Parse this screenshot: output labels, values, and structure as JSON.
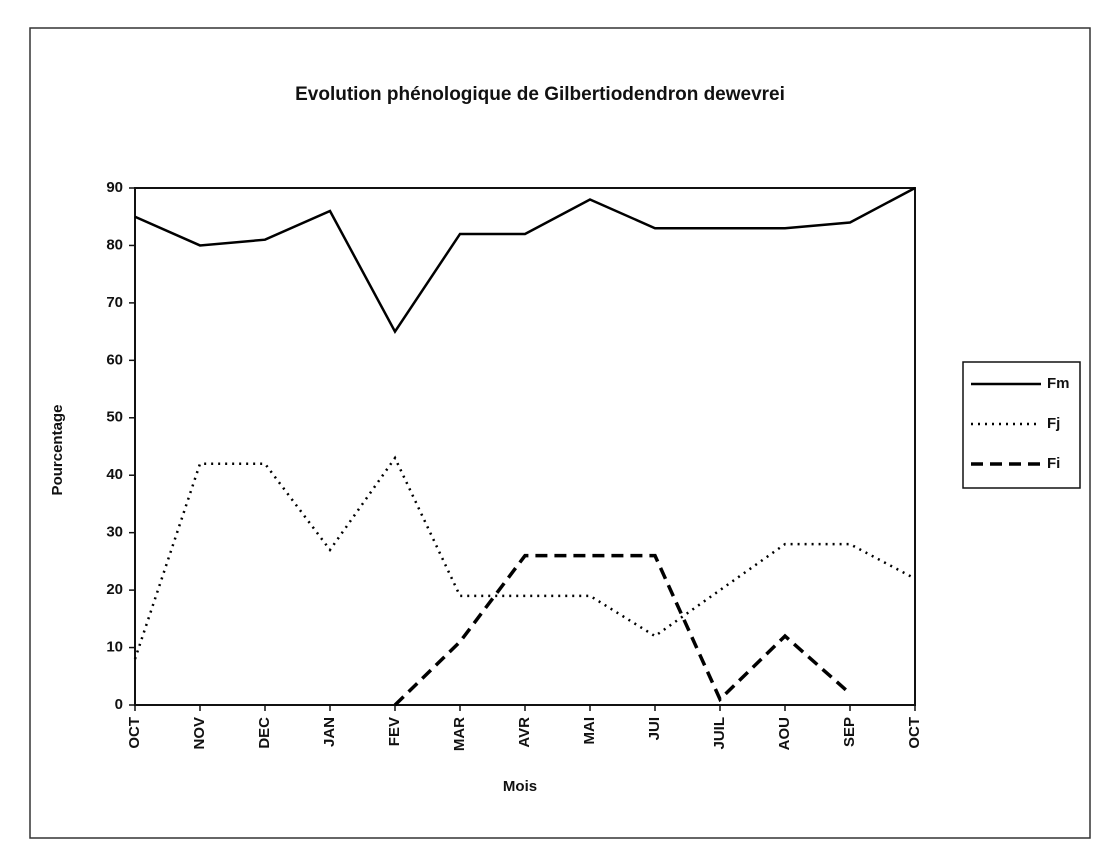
{
  "chart_data": {
    "type": "line",
    "title": "Evolution phénologique de Gilbertiodendron dewevrei",
    "xlabel": "Mois",
    "ylabel": "Pourcentage",
    "categories": [
      "OCT",
      "NOV",
      "DEC",
      "JAN",
      "FEV",
      "MAR",
      "AVR",
      "MAI",
      "JUI",
      "JUIL",
      "AOU",
      "SEP",
      "OCT"
    ],
    "series": [
      {
        "name": "Fm",
        "color": "#000000",
        "style": "solid",
        "values": [
          85,
          80,
          81,
          86,
          65,
          82,
          82,
          88,
          83,
          83,
          83,
          84,
          90
        ]
      },
      {
        "name": "Fj",
        "color": "#000000",
        "style": "dotted",
        "values": [
          8,
          42,
          42,
          27,
          43,
          19,
          19,
          19,
          12,
          20,
          28,
          28,
          22
        ]
      },
      {
        "name": "Fi",
        "color": "#000000",
        "style": "dashed",
        "values": [
          null,
          null,
          null,
          null,
          0,
          11,
          26,
          26,
          26,
          1,
          12,
          2,
          null
        ]
      }
    ],
    "ylim": [
      0,
      90
    ],
    "yticks": [
      0,
      10,
      20,
      30,
      40,
      50,
      60,
      70,
      80,
      90
    ],
    "grid": false,
    "legend": "right"
  }
}
